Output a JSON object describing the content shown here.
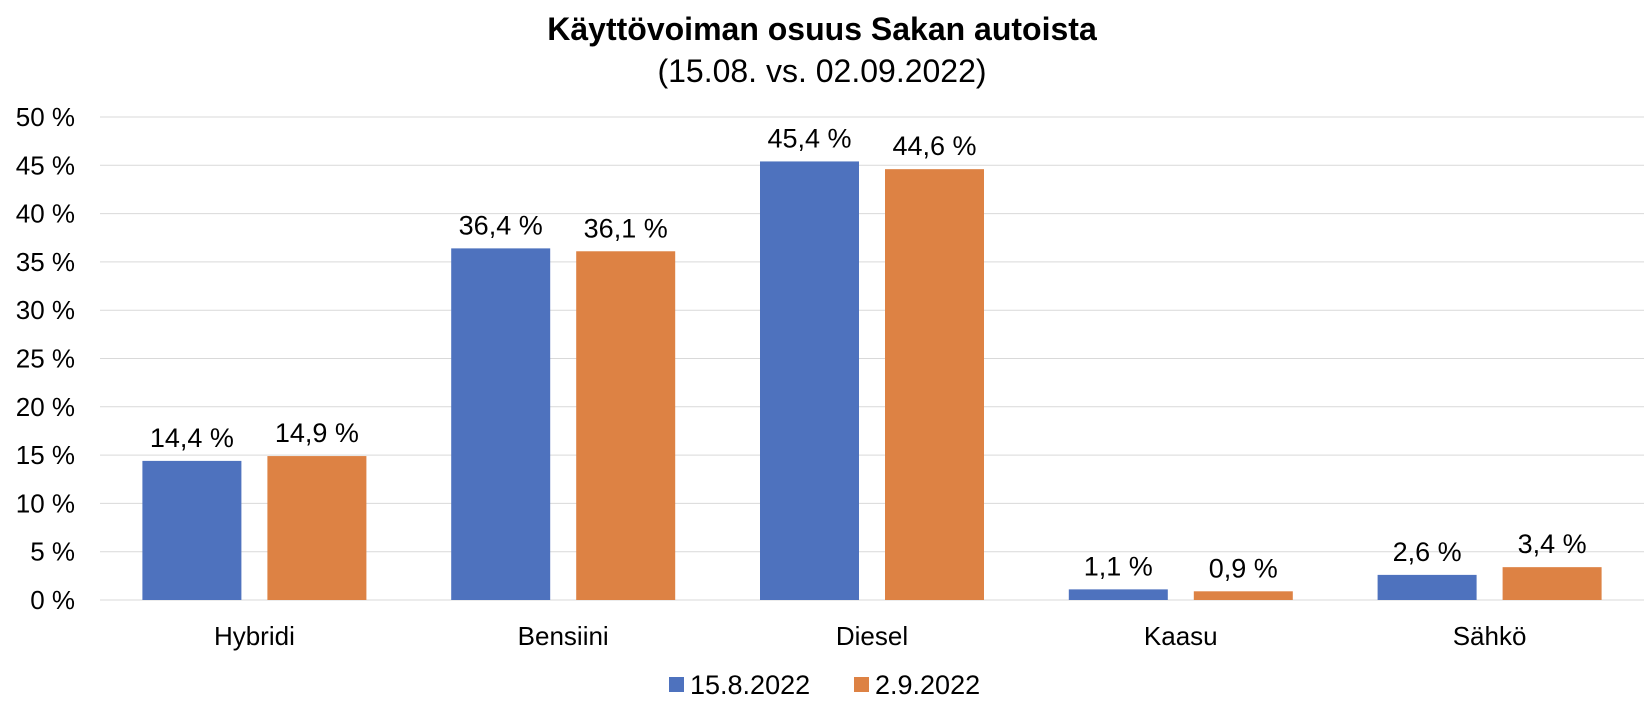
{
  "chart_data": {
    "type": "bar",
    "title": "Käyttövoiman osuus Sakan autoista",
    "subtitle": "(15.08. vs. 02.09.2022)",
    "categories": [
      "Hybridi",
      "Bensiini",
      "Diesel",
      "Kaasu",
      "Sähkö"
    ],
    "series": [
      {
        "name": "15.8.2022",
        "color": "#4e72be",
        "values": [
          14.4,
          36.4,
          45.4,
          1.1,
          2.6
        ],
        "labels": [
          "14,4 %",
          "36,4 %",
          "45,4 %",
          "1,1 %",
          "2,6 %"
        ]
      },
      {
        "name": "2.9.2022",
        "color": "#dd8244",
        "values": [
          14.9,
          36.1,
          44.6,
          0.9,
          3.4
        ],
        "labels": [
          "14,9 %",
          "36,1 %",
          "44,6 %",
          "0,9 %",
          "3,4 %"
        ]
      }
    ],
    "ylim": [
      0,
      50
    ],
    "yticks": [
      0,
      5,
      10,
      15,
      20,
      25,
      30,
      35,
      40,
      45,
      50
    ],
    "ytick_labels": [
      "0 %",
      "5 %",
      "10 %",
      "15 %",
      "20 %",
      "25 %",
      "30 %",
      "35 %",
      "40 %",
      "45 %",
      "50 %"
    ],
    "grid": true,
    "legend_position": "bottom"
  }
}
